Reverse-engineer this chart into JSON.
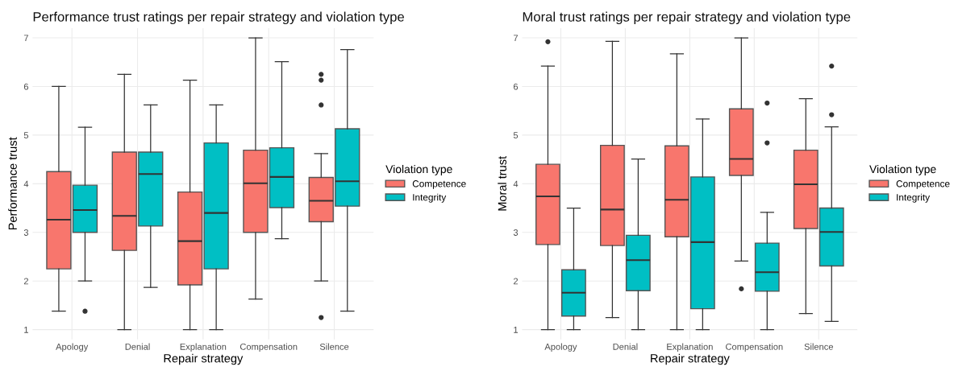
{
  "chart_data": [
    {
      "type": "box",
      "title": "Performance trust ratings per repair strategy and violation type",
      "xlabel": "Repair strategy",
      "ylabel": "Performance trust",
      "legend_title": "Violation type",
      "legend": "right",
      "grid": true,
      "categories": [
        "Apology",
        "Denial",
        "Explanation",
        "Compensation",
        "Silence"
      ],
      "ylim": [
        0.8,
        7.2
      ],
      "yticks": [
        1,
        2,
        3,
        4,
        5,
        6,
        7
      ],
      "series": [
        {
          "name": "Competence",
          "color": "#f8766d",
          "boxes": [
            {
              "low": 1.38,
              "q1": 2.25,
              "median": 3.26,
              "q3": 4.25,
              "high": 6.0
            },
            {
              "low": 1.0,
              "q1": 2.63,
              "median": 3.34,
              "q3": 4.65,
              "high": 6.25
            },
            {
              "low": 1.0,
              "q1": 1.92,
              "median": 2.82,
              "q3": 3.83,
              "high": 6.13
            },
            {
              "low": 1.63,
              "q1": 3.0,
              "median": 4.01,
              "q3": 4.69,
              "high": 7.0
            },
            {
              "low": 2.0,
              "q1": 3.22,
              "median": 3.65,
              "q3": 4.13,
              "high": 4.62,
              "outliers": [
                6.25,
                6.13,
                5.62,
                1.25
              ]
            }
          ]
        },
        {
          "name": "Integrity",
          "color": "#00bfc4",
          "boxes": [
            {
              "low": 2.0,
              "q1": 3.0,
              "median": 3.46,
              "q3": 3.97,
              "high": 5.16,
              "outliers": [
                1.38
              ]
            },
            {
              "low": 1.87,
              "q1": 3.13,
              "median": 4.2,
              "q3": 4.65,
              "high": 5.62
            },
            {
              "low": 1.0,
              "q1": 2.25,
              "median": 3.4,
              "q3": 4.84,
              "high": 5.62
            },
            {
              "low": 2.87,
              "q1": 3.51,
              "median": 4.14,
              "q3": 4.74,
              "high": 6.51
            },
            {
              "low": 1.38,
              "q1": 3.54,
              "median": 4.05,
              "q3": 5.13,
              "high": 6.76
            }
          ]
        }
      ]
    },
    {
      "type": "box",
      "title": "Moral trust ratings per repair strategy and violation type",
      "xlabel": "Repair strategy",
      "ylabel": "Moral trust",
      "legend_title": "Violation type",
      "legend": "right",
      "grid": true,
      "categories": [
        "Apology",
        "Denial",
        "Explanation",
        "Compensation",
        "Silence"
      ],
      "ylim": [
        0.8,
        7.2
      ],
      "yticks": [
        1,
        2,
        3,
        4,
        5,
        6,
        7
      ],
      "series": [
        {
          "name": "Competence",
          "color": "#f8766d",
          "boxes": [
            {
              "low": 1.0,
              "q1": 2.75,
              "median": 3.74,
              "q3": 4.4,
              "high": 6.42,
              "outliers": [
                6.92
              ]
            },
            {
              "low": 1.25,
              "q1": 2.73,
              "median": 3.47,
              "q3": 4.79,
              "high": 6.93
            },
            {
              "low": 1.0,
              "q1": 2.91,
              "median": 3.67,
              "q3": 4.78,
              "high": 6.67
            },
            {
              "low": 2.41,
              "q1": 4.17,
              "median": 4.51,
              "q3": 5.54,
              "high": 7.0,
              "outliers": [
                1.84
              ]
            },
            {
              "low": 1.33,
              "q1": 3.08,
              "median": 3.99,
              "q3": 4.69,
              "high": 5.75
            }
          ]
        },
        {
          "name": "Integrity",
          "color": "#00bfc4",
          "boxes": [
            {
              "low": 1.0,
              "q1": 1.28,
              "median": 1.76,
              "q3": 2.23,
              "high": 3.5
            },
            {
              "low": 1.0,
              "q1": 1.8,
              "median": 2.43,
              "q3": 2.94,
              "high": 4.51
            },
            {
              "low": 1.0,
              "q1": 1.43,
              "median": 2.8,
              "q3": 4.14,
              "high": 5.33
            },
            {
              "low": 1.0,
              "q1": 1.79,
              "median": 2.18,
              "q3": 2.78,
              "high": 3.41,
              "outliers": [
                5.66,
                4.84
              ]
            },
            {
              "low": 1.17,
              "q1": 2.31,
              "median": 3.01,
              "q3": 3.5,
              "high": 5.17,
              "outliers": [
                6.42,
                5.42
              ]
            }
          ]
        }
      ]
    }
  ]
}
